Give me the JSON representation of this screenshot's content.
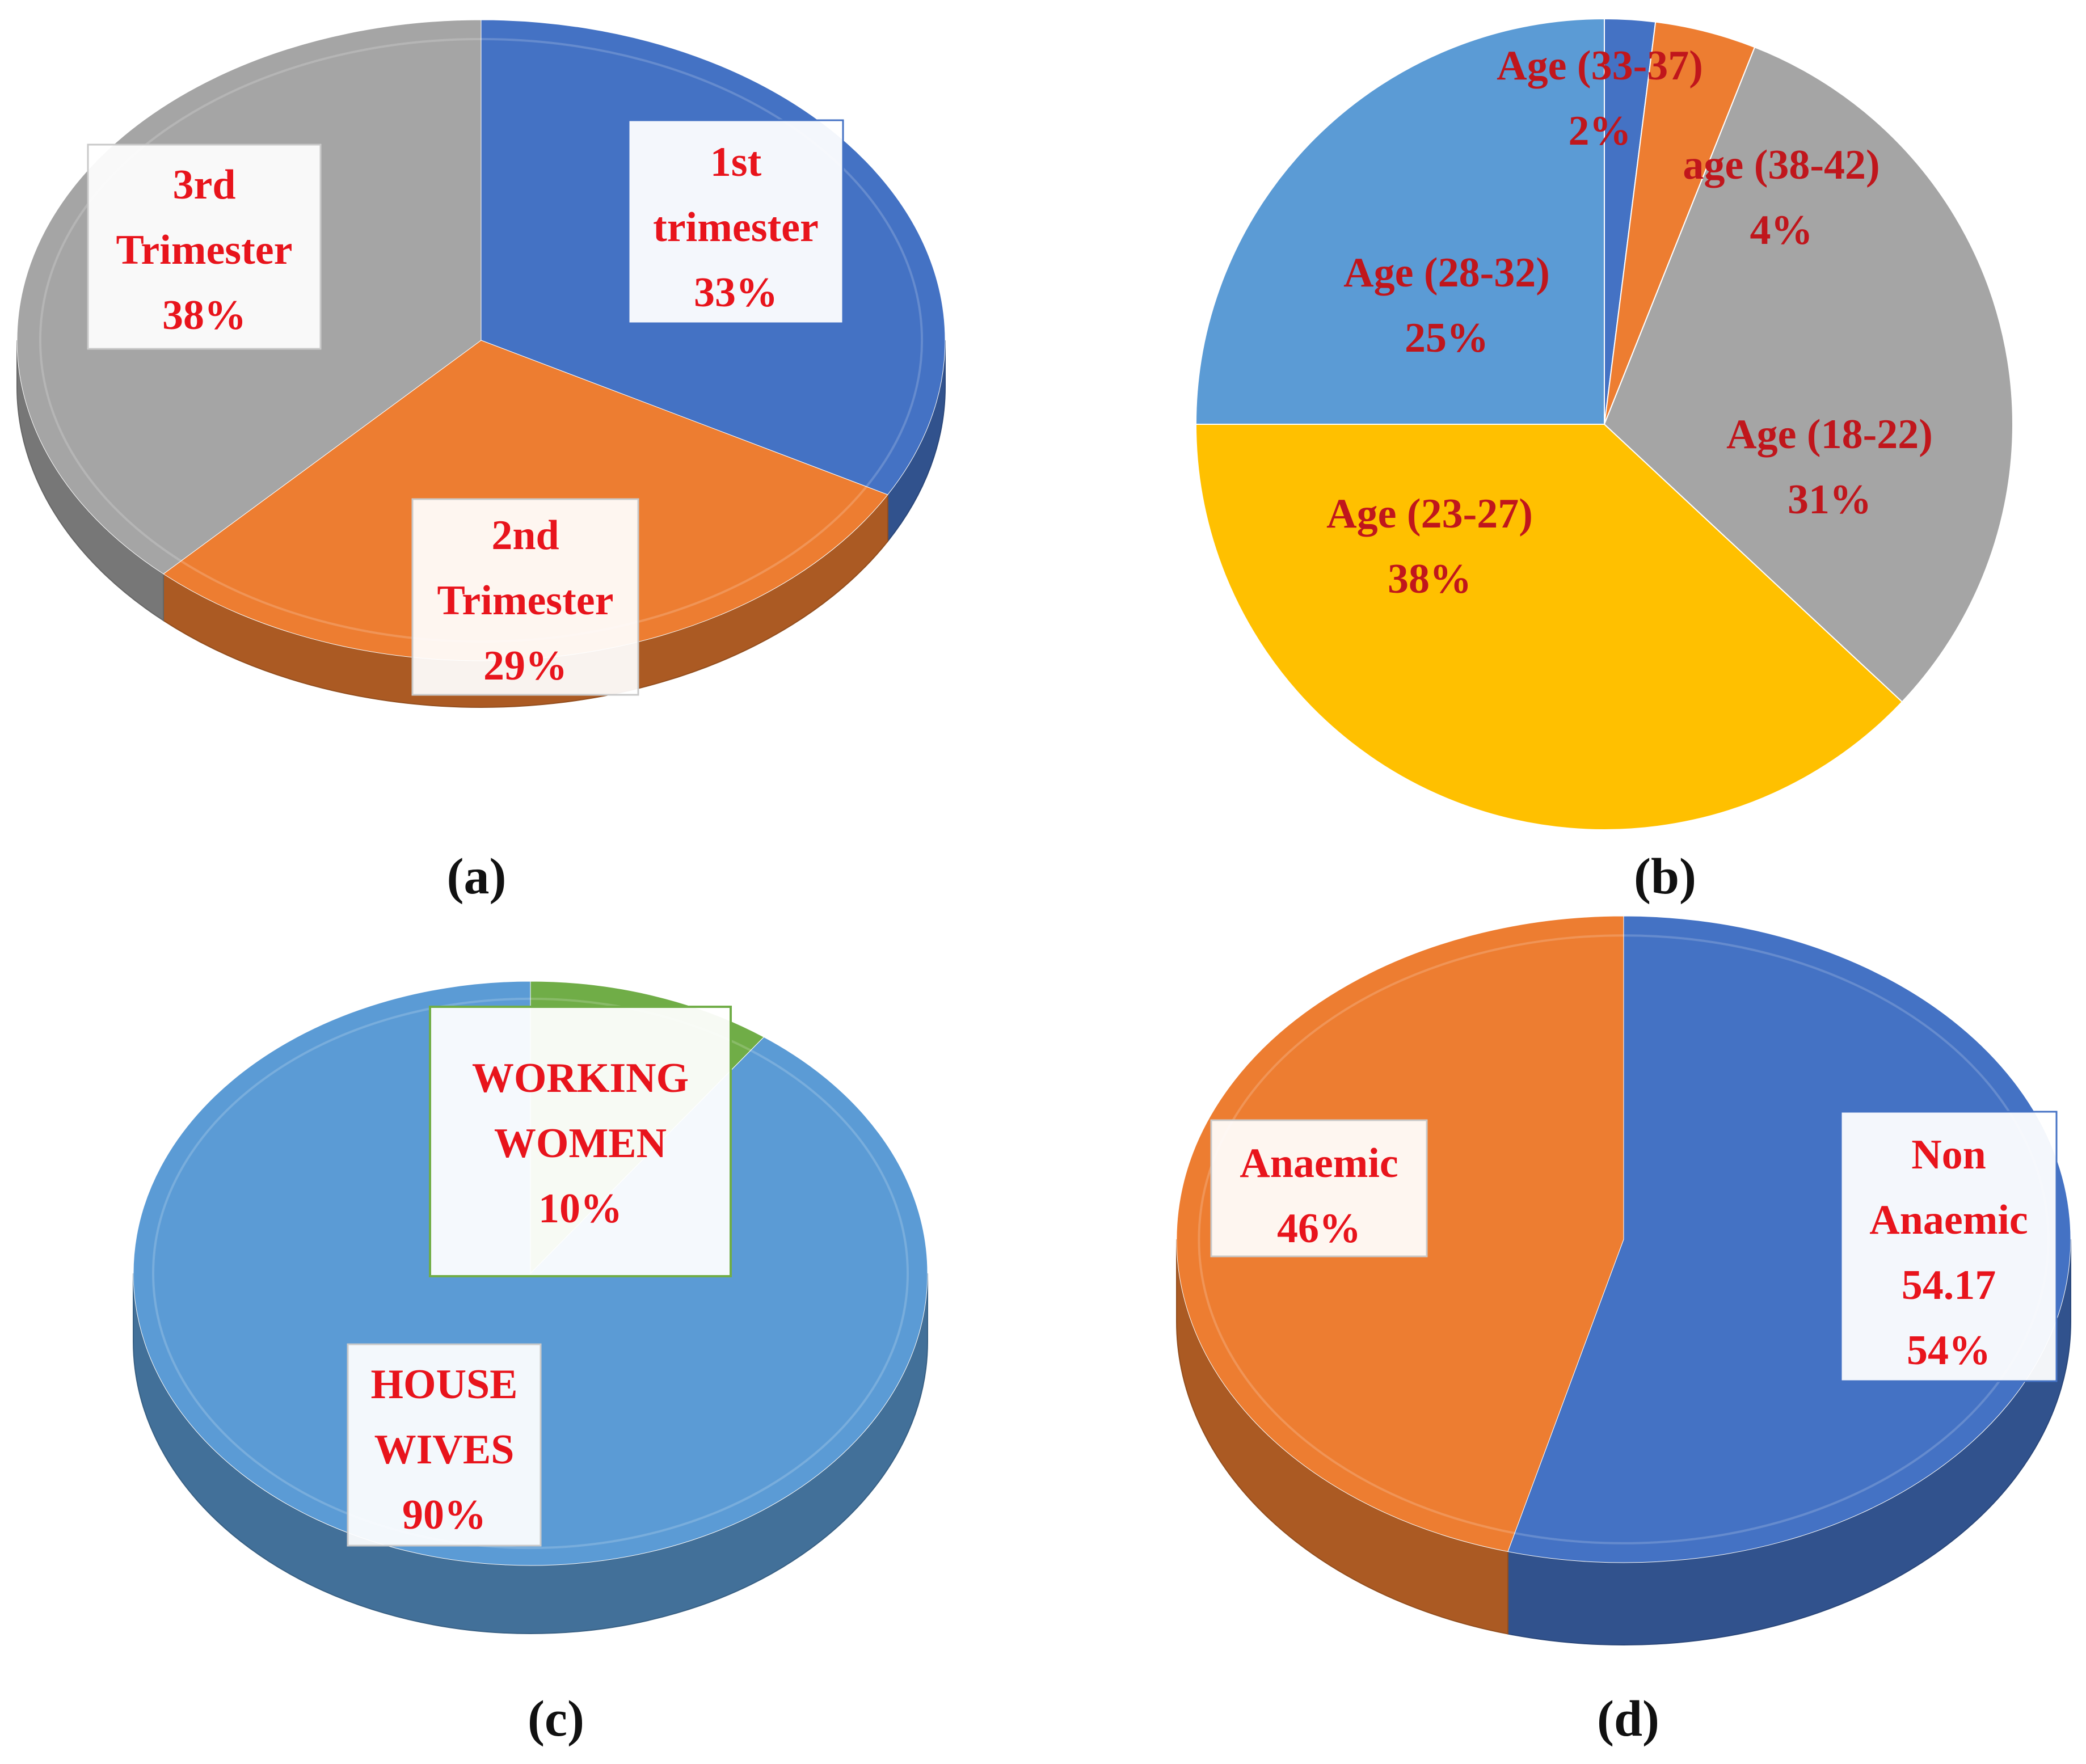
{
  "chart_data": [
    {
      "panel": "(a)",
      "type": "pie",
      "style": "3d",
      "categories": [
        "1st trimester",
        "2nd Trimester",
        "3rd Trimester"
      ],
      "values": [
        33,
        29,
        38
      ],
      "value_unit": "%",
      "colors": [
        "#4472c4",
        "#ed7d31",
        "#a5a5a5"
      ],
      "labels": [
        [
          "1st",
          "trimester",
          "33%"
        ],
        [
          "2nd",
          "Trimester",
          "29%"
        ],
        [
          "3rd",
          "Trimester",
          "38%"
        ]
      ]
    },
    {
      "panel": "(b)",
      "type": "pie",
      "style": "2d",
      "categories": [
        "Age (33-37)",
        "age (38-42)",
        "Age (18-22)",
        "Age (23-27)",
        "Age (28-32)"
      ],
      "values": [
        2,
        4,
        31,
        38,
        25
      ],
      "value_unit": "%",
      "colors": [
        "#4472c4",
        "#ed7d31",
        "#a5a5a5",
        "#ffc000",
        "#5b9bd5"
      ],
      "labels": [
        [
          "Age (33-37)",
          "2%"
        ],
        [
          "age (38-42)",
          "4%"
        ],
        [
          "Age (18-22)",
          "31%"
        ],
        [
          "Age (23-27)",
          "38%"
        ],
        [
          "Age (28-32)",
          "25%"
        ]
      ]
    },
    {
      "panel": "(c)",
      "type": "pie",
      "style": "3d",
      "categories": [
        "WORKING WOMEN",
        "HOUSE WIVES"
      ],
      "values": [
        10,
        90
      ],
      "value_unit": "%",
      "colors": [
        "#70ad47",
        "#5b9bd5"
      ],
      "labels": [
        [
          "WORKING",
          "WOMEN",
          "10%"
        ],
        [
          "HOUSE",
          "WIVES",
          "90%"
        ]
      ]
    },
    {
      "panel": "(d)",
      "type": "pie",
      "style": "3d",
      "categories": [
        "Non Anaemic",
        "Anaemic"
      ],
      "values": [
        54.17,
        45.83
      ],
      "value_unit": "%",
      "colors": [
        "#4472c4",
        "#ed7d31"
      ],
      "labels": [
        [
          "Non",
          "Anaemic",
          "54.17",
          "54%"
        ],
        [
          "Anaemic",
          "46%"
        ]
      ]
    }
  ]
}
